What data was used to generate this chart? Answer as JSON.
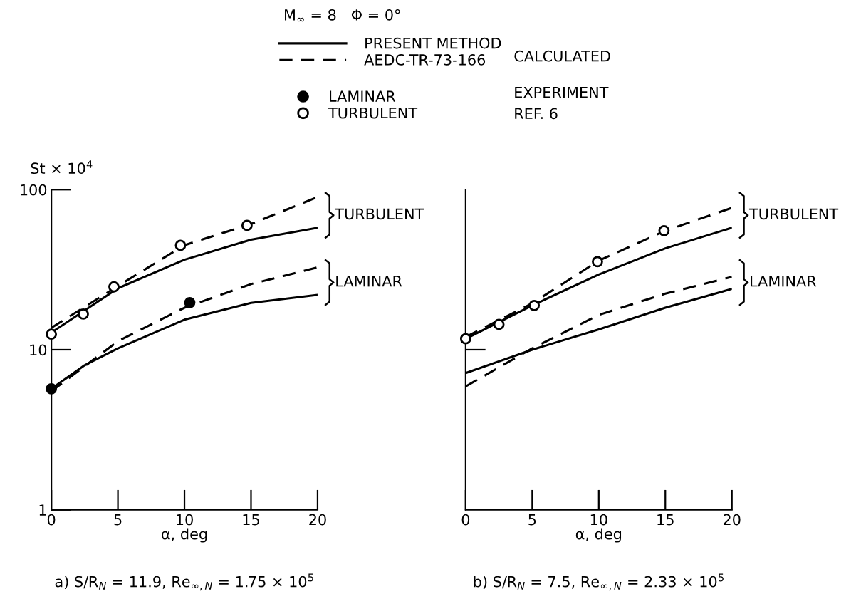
{
  "chart_data": [
    {
      "type": "line",
      "title": "M$_{∞}$ = 8   Φ = 0°",
      "xlabel": "α, deg",
      "ylabel": "St × 10$^{4}$",
      "log": "y",
      "xlim": [
        0,
        20
      ],
      "xticks": [
        0,
        5,
        10,
        15,
        20
      ],
      "ylim": [
        1,
        100
      ],
      "yticks": [
        1,
        10,
        100
      ],
      "grid": false,
      "legend": "top",
      "annotations": [
        "CALCULATED",
        "EXPERIMENT",
        "REF. 6",
        "a) S/R$_{N}$ = 11.9, Re$_{∞,N}$ = 1.75 × 10$^{5}$",
        "TURBULENT",
        "LAMINAR"
      ],
      "series": [
        {
          "name": "PRESENT METHOD",
          "color": "#000000",
          "line_style": "solid",
          "marker": "none",
          "x": [
            0,
            5,
            10,
            15,
            20
          ],
          "values": [
            12.8,
            24.2,
            36.5,
            48.7,
            57.8
          ]
        },
        {
          "name": "AEDC-TR-73-166",
          "color": "#000000",
          "line_style": "dashed",
          "marker": "none",
          "x": [
            0,
            5,
            10,
            15,
            20
          ],
          "values": [
            13.7,
            25,
            45,
            61,
            90
          ]
        },
        {
          "color": "#000000",
          "line_style": "solid",
          "marker": "none",
          "x": [
            0,
            2.5,
            5,
            10,
            15,
            20
          ],
          "values": [
            5.7,
            8.0,
            10.2,
            15.4,
            19.6,
            22
          ]
        },
        {
          "color": "#000000",
          "line_style": "dashed",
          "marker": "none",
          "x": [
            0,
            5,
            10,
            15,
            20
          ],
          "values": [
            5.5,
            11.3,
            18.3,
            25.7,
            32.7
          ]
        },
        {
          "name": "LAMINAR",
          "type": "scatter",
          "color": "#000000",
          "marker": "circle",
          "x": [
            0,
            10.4
          ],
          "values": [
            5.7,
            19.7
          ]
        },
        {
          "name": "TURBULENT",
          "type": "scatter",
          "color": "#ffffff",
          "marker": "circle",
          "x": [
            0,
            2.4,
            4.7,
            9.7,
            14.7
          ],
          "values": [
            12.5,
            16.7,
            24.7,
            44.9,
            59.8
          ]
        }
      ]
    },
    {
      "type": "line",
      "xlabel": "α, deg",
      "log": "y",
      "xlim": [
        0,
        20
      ],
      "xticks": [
        0,
        5,
        10,
        15,
        20
      ],
      "ylim": [
        1,
        100
      ],
      "yticks": [
        {
          "value": 10,
          "label": null
        }
      ],
      "grid": false,
      "tick_labels": "x",
      "annotations": [
        "b) S/R$_{N}$ = 7.5, Re$_{∞,N}$ = 2.33 × 10$^{5}$",
        "TURBULENT",
        "LAMINAR"
      ],
      "series": [
        {
          "color": "#000000",
          "line_style": "solid",
          "marker": "none",
          "x": [
            0,
            5,
            10,
            15,
            20
          ],
          "values": [
            11.7,
            18.9,
            29.5,
            43,
            57.8
          ]
        },
        {
          "color": "#000000",
          "line_style": "dashed",
          "marker": "none",
          "x": [
            0,
            5,
            10,
            15,
            20
          ],
          "values": [
            12,
            19.5,
            36,
            55.4,
            77
          ]
        },
        {
          "color": "#000000",
          "line_style": "solid",
          "marker": "none",
          "x": [
            0,
            5,
            10,
            15,
            20
          ],
          "values": [
            7.15,
            10,
            13.4,
            18.3,
            24
          ]
        },
        {
          "color": "#000000",
          "line_style": "dashed",
          "marker": "none",
          "x": [
            0,
            5,
            10,
            15,
            20
          ],
          "values": [
            5.9,
            10.2,
            16.5,
            22.4,
            28.5
          ]
        },
        {
          "type": "scatter",
          "color": "#ffffff",
          "marker": "circle",
          "x": [
            0,
            2.5,
            5.15,
            9.9,
            14.9
          ],
          "values": [
            11.7,
            14.4,
            18.9,
            35.5,
            55.4
          ]
        }
      ]
    }
  ]
}
